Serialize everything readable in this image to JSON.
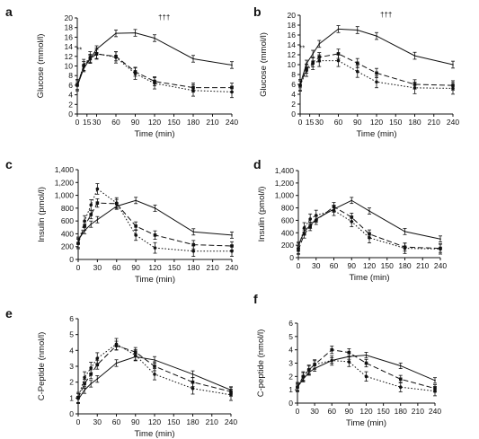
{
  "chart_data": [
    {
      "type": "line",
      "panel_label": "a",
      "xlabel": "Time (min)",
      "ylabel": "Glucose (mmol/l)",
      "xlim": [
        0,
        240
      ],
      "ylim": [
        0,
        20
      ],
      "xticks": [
        0,
        15,
        30,
        60,
        90,
        120,
        150,
        180,
        210,
        240
      ],
      "yticks": [
        0,
        2,
        4,
        6,
        8,
        10,
        12,
        14,
        16,
        18,
        20
      ],
      "annotations": [
        "†††",
        "**"
      ],
      "series": [
        {
          "style": "solid",
          "marker": "none",
          "x": [
            0,
            10,
            20,
            30,
            60,
            90,
            120,
            180,
            240
          ],
          "y": [
            5.8,
            9.5,
            11.5,
            13.5,
            16.8,
            16.9,
            15.8,
            11.5,
            10.2
          ]
        },
        {
          "style": "dashed",
          "marker": "square",
          "x": [
            0,
            10,
            20,
            30,
            60,
            90,
            120,
            180,
            240
          ],
          "y": [
            6,
            10,
            11.5,
            12.5,
            12,
            8.8,
            6.8,
            5.5,
            5.5
          ]
        },
        {
          "style": "dotted",
          "marker": "circle",
          "x": [
            0,
            10,
            20,
            30,
            60,
            90,
            120,
            180,
            240
          ],
          "y": [
            6,
            10.2,
            11.8,
            12.6,
            11.8,
            8.4,
            6.4,
            4.9,
            4.6
          ]
        }
      ]
    },
    {
      "type": "line",
      "panel_label": "b",
      "xlabel": "Time (min)",
      "ylabel": "Glucose (mmol/l)",
      "xlim": [
        0,
        240
      ],
      "ylim": [
        0,
        20
      ],
      "xticks": [
        0,
        15,
        30,
        60,
        90,
        120,
        150,
        180,
        210,
        240
      ],
      "yticks": [
        0,
        2,
        4,
        6,
        8,
        10,
        12,
        14,
        16,
        18,
        20
      ],
      "annotations": [
        "†††",
        "**"
      ],
      "series": [
        {
          "style": "solid",
          "marker": "none",
          "x": [
            0,
            10,
            20,
            30,
            60,
            90,
            120,
            180,
            240
          ],
          "y": [
            6,
            10.2,
            12.2,
            14.2,
            17.2,
            17,
            15.8,
            11.8,
            10
          ]
        },
        {
          "style": "dashed",
          "marker": "square",
          "x": [
            0,
            10,
            20,
            30,
            60,
            90,
            120,
            180,
            240
          ],
          "y": [
            5.8,
            9.2,
            10.5,
            11.5,
            12.2,
            10.3,
            8.3,
            6,
            5.8
          ]
        },
        {
          "style": "dotted",
          "marker": "circle",
          "x": [
            0,
            10,
            20,
            30,
            60,
            90,
            120,
            180,
            240
          ],
          "y": [
            5.8,
            8.8,
            10.2,
            10.8,
            10.8,
            8.6,
            6.5,
            5.3,
            5.2
          ]
        }
      ]
    },
    {
      "type": "line",
      "panel_label": "c",
      "xlabel": "Time (min)",
      "ylabel": "Insulin (pmol/l)",
      "xlim": [
        0,
        240
      ],
      "ylim": [
        0,
        1400
      ],
      "xticks": [
        0,
        30,
        60,
        90,
        120,
        150,
        180,
        210,
        240
      ],
      "yticks": [
        0,
        200,
        400,
        600,
        800,
        1000,
        1200,
        1400
      ],
      "ytick_labels": [
        "0",
        "200",
        "400",
        "600",
        "800",
        "1,000",
        "1,200",
        "1,400"
      ],
      "annotations": [],
      "series": [
        {
          "style": "solid",
          "marker": "none",
          "x": [
            0,
            10,
            20,
            30,
            60,
            90,
            120,
            180,
            240
          ],
          "y": [
            300,
            450,
            550,
            620,
            830,
            920,
            800,
            430,
            380
          ]
        },
        {
          "style": "dashed",
          "marker": "square",
          "x": [
            0,
            10,
            20,
            30,
            60,
            90,
            120,
            180,
            240
          ],
          "y": [
            250,
            520,
            700,
            880,
            870,
            520,
            380,
            230,
            210
          ]
        },
        {
          "style": "dotted",
          "marker": "circle",
          "x": [
            0,
            10,
            20,
            30,
            60,
            90,
            120,
            180,
            240
          ],
          "y": [
            250,
            600,
            850,
            1100,
            880,
            380,
            180,
            130,
            130
          ]
        }
      ]
    },
    {
      "type": "line",
      "panel_label": "d",
      "xlabel": "Time (min)",
      "ylabel": "Insulin (pmol/l)",
      "xlim": [
        0,
        240
      ],
      "ylim": [
        0,
        1400
      ],
      "xticks": [
        0,
        30,
        60,
        90,
        120,
        150,
        180,
        210,
        240
      ],
      "yticks": [
        0,
        200,
        400,
        600,
        800,
        1000,
        1200,
        1400
      ],
      "ytick_labels": [
        "0",
        "200",
        "400",
        "600",
        "800",
        "1,000",
        "1,200",
        "1,400"
      ],
      "annotations": [],
      "series": [
        {
          "style": "solid",
          "marker": "none",
          "x": [
            0,
            10,
            20,
            30,
            60,
            90,
            120,
            180,
            240
          ],
          "y": [
            200,
            420,
            520,
            620,
            780,
            920,
            750,
            420,
            300
          ]
        },
        {
          "style": "dashed",
          "marker": "square",
          "x": [
            0,
            10,
            20,
            30,
            60,
            90,
            120,
            180,
            240
          ],
          "y": [
            120,
            380,
            500,
            600,
            820,
            650,
            380,
            170,
            150
          ]
        },
        {
          "style": "dotted",
          "marker": "circle",
          "x": [
            0,
            10,
            20,
            30,
            60,
            90,
            120,
            180,
            240
          ],
          "y": [
            150,
            480,
            620,
            680,
            760,
            580,
            320,
            150,
            140
          ]
        }
      ]
    },
    {
      "type": "line",
      "panel_label": "e",
      "xlabel": "Time (min)",
      "ylabel": "C-Peptide (nmol/l)",
      "xlim": [
        0,
        240
      ],
      "ylim": [
        0,
        6
      ],
      "xticks": [
        0,
        30,
        60,
        90,
        120,
        150,
        180,
        210,
        240
      ],
      "yticks": [
        0,
        1,
        2,
        3,
        4,
        5,
        6
      ],
      "annotations": [],
      "series": [
        {
          "style": "solid",
          "marker": "none",
          "x": [
            0,
            10,
            20,
            30,
            60,
            90,
            120,
            180,
            240
          ],
          "y": [
            0.9,
            1.5,
            1.9,
            2.2,
            3.2,
            3.6,
            3.4,
            2.5,
            1.5
          ]
        },
        {
          "style": "dashed",
          "marker": "square",
          "x": [
            0,
            10,
            20,
            30,
            60,
            90,
            120,
            180,
            240
          ],
          "y": [
            1,
            1.9,
            2.5,
            3.1,
            4.3,
            3.9,
            3,
            2,
            1.4
          ]
        },
        {
          "style": "dotted",
          "marker": "circle",
          "x": [
            0,
            10,
            20,
            30,
            60,
            90,
            120,
            180,
            240
          ],
          "y": [
            1,
            2.3,
            2.9,
            3.5,
            4.4,
            3.7,
            2.5,
            1.6,
            1.2
          ]
        }
      ]
    },
    {
      "type": "line",
      "panel_label": "f",
      "xlabel": "Time (min)",
      "ylabel": "C-peptide (nmol/l)",
      "xlim": [
        0,
        240
      ],
      "ylim": [
        0,
        6
      ],
      "xticks": [
        0,
        30,
        60,
        90,
        120,
        150,
        180,
        210,
        240
      ],
      "yticks": [
        0,
        1,
        2,
        3,
        4,
        5,
        6
      ],
      "annotations": [],
      "series": [
        {
          "style": "solid",
          "marker": "none",
          "x": [
            0,
            10,
            20,
            30,
            60,
            90,
            120,
            180,
            240
          ],
          "y": [
            1.2,
            1.8,
            2.3,
            2.6,
            3.2,
            3.5,
            3.6,
            2.8,
            1.7
          ]
        },
        {
          "style": "dashed",
          "marker": "square",
          "x": [
            0,
            10,
            20,
            30,
            60,
            90,
            120,
            180,
            240
          ],
          "y": [
            1.2,
            2,
            2.5,
            2.9,
            4,
            3.8,
            3,
            1.8,
            1.1
          ]
        },
        {
          "style": "dotted",
          "marker": "circle",
          "x": [
            0,
            10,
            20,
            30,
            60,
            90,
            120,
            180,
            240
          ],
          "y": [
            1.2,
            2,
            2.5,
            2.9,
            3.2,
            3.1,
            2,
            1.2,
            0.9
          ]
        }
      ]
    }
  ]
}
